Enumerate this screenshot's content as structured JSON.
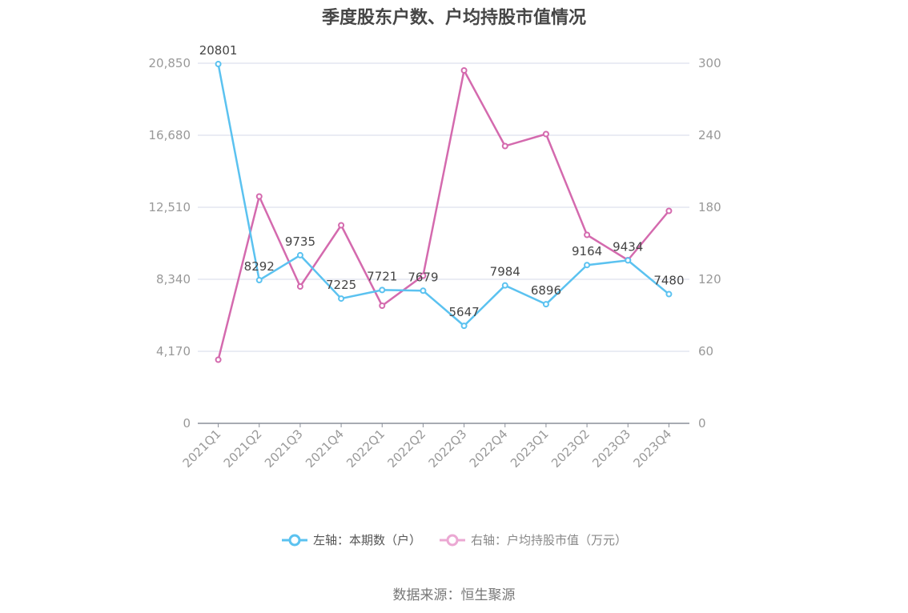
{
  "title": "季度股东户数、户均持股市值情况",
  "source": "数据来源：恒生聚源",
  "colors": {
    "left_series": "#5BC2F0",
    "right_series": "#D46AAE",
    "grid": "#E3E6F0",
    "axis": "#8A8F99"
  },
  "legend": {
    "left": "左轴：本期数（户）",
    "right": "右轴：户均持股市值（万元）"
  },
  "chart_data": {
    "type": "line",
    "title": "季度股东户数、户均持股市值情况",
    "categories": [
      "2021Q1",
      "2021Q2",
      "2021Q3",
      "2021Q4",
      "2022Q1",
      "2022Q2",
      "2022Q3",
      "2022Q4",
      "2023Q1",
      "2023Q2",
      "2023Q3",
      "2023Q4"
    ],
    "series": [
      {
        "name": "左轴：本期数（户）",
        "axis": "left",
        "values": [
          20801,
          8292,
          9735,
          7225,
          7721,
          7679,
          5647,
          7984,
          6896,
          9164,
          9434,
          7480
        ],
        "labels_shown": true
      },
      {
        "name": "右轴：户均持股市值（万元）",
        "axis": "right",
        "values": [
          53,
          189,
          114,
          165,
          98,
          123,
          294,
          231,
          241,
          157,
          136,
          177
        ],
        "labels_shown": false
      }
    ],
    "left_axis": {
      "ticks": [
        "0",
        "4,170",
        "8,340",
        "12,510",
        "16,680",
        "20,850"
      ],
      "ylim": [
        0,
        20850
      ]
    },
    "right_axis": {
      "ticks": [
        "0",
        "60",
        "120",
        "180",
        "240",
        "300"
      ],
      "ylim": [
        0,
        300
      ]
    },
    "grid": true,
    "legend_position": "bottom",
    "xlabel": "",
    "ylabel": ""
  }
}
